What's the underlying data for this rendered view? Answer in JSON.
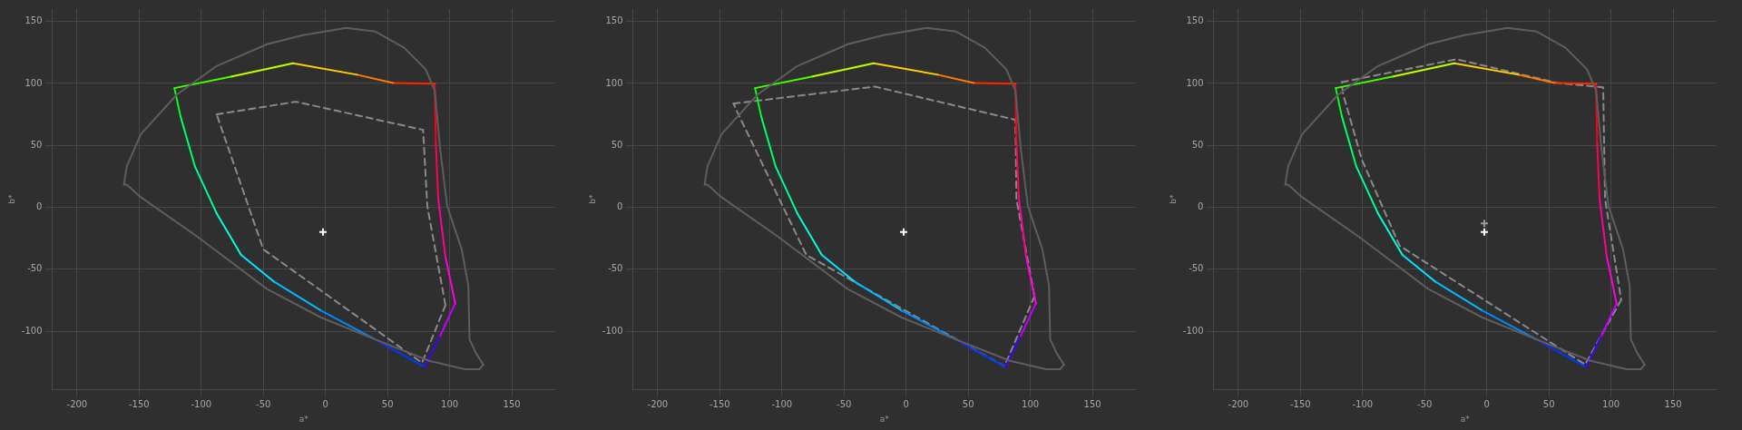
{
  "chart_data": [
    {
      "type": "line",
      "xlabel": "a*",
      "ylabel": "b*",
      "xlim": [
        -220,
        185
      ],
      "ylim": [
        -147,
        160
      ],
      "xticks": [
        -200,
        -150,
        -100,
        -50,
        0,
        50,
        100,
        150
      ],
      "yticks": [
        -100,
        -50,
        0,
        50,
        100,
        150
      ],
      "grid": true,
      "marker": "none",
      "series": [
        {
          "color": "#5e5e5e",
          "line_style": "solid",
          "x": [
            -162.2,
            -160,
            -148.6,
            -119.6,
            -87.6,
            -47,
            -18,
            16.8,
            40,
            63.3,
            80.7,
            88,
            92.3,
            98,
            109.7,
            115,
            116,
            121.3,
            127
          ],
          "values": [
            18.3,
            32.8,
            59,
            91,
            114,
            131.6,
            139,
            144.8,
            141.9,
            128.8,
            111.3,
            94,
            47.4,
            0.9,
            -34,
            -63,
            -106.7,
            -118,
            -127
          ]
        },
        {
          "color": "#5e5e5e",
          "line_style": "solid",
          "x": [
            127,
            124,
            112.6,
            83.6,
            40,
            -3.5,
            -47,
            -105,
            -148.6,
            -160,
            -162.2
          ],
          "values": [
            -127,
            -130.8,
            -130.8,
            -124,
            -106.7,
            -89,
            -66,
            -22.4,
            8.1,
            18.3,
            18.3
          ]
        },
        {
          "line_style": "solid",
          "color": "#40ff00",
          "x": [
            -121.6,
            -76
          ],
          "values": [
            96.2,
            105.5
          ]
        },
        {
          "line_style": "solid",
          "color": "#c0ff00",
          "x": [
            -76,
            -26.1
          ],
          "values": [
            105.5,
            116.3
          ]
        },
        {
          "line_style": "solid",
          "color": "#ffd000",
          "x": [
            -26.1,
            25.5
          ],
          "values": [
            116.3,
            107
          ]
        },
        {
          "line_style": "solid",
          "color": "#ff7a00",
          "x": [
            25.5,
            54.6
          ],
          "values": [
            107,
            100.3
          ]
        },
        {
          "line_style": "solid",
          "color": "#ff2800",
          "x": [
            54.6,
            88
          ],
          "values": [
            100.3,
            99.7
          ]
        },
        {
          "line_style": "solid",
          "color": "#ff0018",
          "x": [
            88,
            88.8
          ],
          "values": [
            99.7,
            53
          ]
        },
        {
          "line_style": "solid",
          "color": "#ff0058",
          "x": [
            88.8,
            90.8
          ],
          "values": [
            53,
            6.7
          ]
        },
        {
          "line_style": "solid",
          "color": "#ff00a0",
          "x": [
            90.8,
            96.6
          ],
          "values": [
            6.7,
            -39.8
          ]
        },
        {
          "line_style": "solid",
          "color": "#ff00e0",
          "x": [
            96.6,
            104.5
          ],
          "values": [
            -39.8,
            -77.6
          ]
        },
        {
          "line_style": "solid",
          "color": "#c000ff",
          "x": [
            104.5,
            92.3
          ],
          "values": [
            -77.6,
            -103.8
          ]
        },
        {
          "line_style": "solid",
          "color": "#4000ff",
          "x": [
            92.3,
            79.8
          ],
          "values": [
            -103.8,
            -129
          ]
        },
        {
          "line_style": "solid",
          "color": "#0038ff",
          "x": [
            79.8,
            40
          ],
          "values": [
            -129,
            -106.7
          ]
        },
        {
          "line_style": "solid",
          "color": "#0088ff",
          "x": [
            40,
            -3.5
          ],
          "values": [
            -106.7,
            -83.4
          ]
        },
        {
          "line_style": "solid",
          "color": "#00b8ff",
          "x": [
            -3.5,
            -41.2
          ],
          "values": [
            -83.4,
            -60.2
          ]
        },
        {
          "line_style": "solid",
          "color": "#00e8ff",
          "x": [
            -41.2,
            -67.9
          ],
          "values": [
            -60.2,
            -38.4
          ]
        },
        {
          "line_style": "solid",
          "color": "#00ffd5",
          "x": [
            -67.9,
            -87.6
          ],
          "values": [
            -38.4,
            -4.9
          ]
        },
        {
          "line_style": "solid",
          "color": "#00ff95",
          "x": [
            -87.6,
            -105
          ],
          "values": [
            -4.9,
            32.8
          ]
        },
        {
          "line_style": "solid",
          "color": "#00ff60",
          "x": [
            -105,
            -116.7
          ],
          "values": [
            32.8,
            73.5
          ]
        },
        {
          "line_style": "solid",
          "color": "#00ff20",
          "x": [
            -116.7,
            -121.6
          ],
          "values": [
            73.5,
            96.2
          ]
        },
        {
          "line_style": "dashed",
          "color": "#8a8a8a",
          "x": [
            -87.6,
            -23.8,
            78.6,
            82,
            96.6
          ],
          "values": [
            75,
            85.2,
            62.5,
            0.9,
            -79
          ]
        },
        {
          "line_style": "dashed",
          "color": "#8a8a8a",
          "x": [
            96.6,
            77.8,
            -50,
            -87.6
          ],
          "values": [
            -79,
            -125.6,
            -34,
            75
          ]
        },
        {
          "type": "scatter",
          "marker": "cross",
          "color": "#ffffff",
          "x": [
            -2
          ],
          "values": [
            -20
          ]
        }
      ]
    },
    {
      "type": "line",
      "xlabel": "a*",
      "ylabel": "b*",
      "xlim": [
        -220,
        185
      ],
      "ylim": [
        -147,
        160
      ],
      "xticks": [
        -200,
        -150,
        -100,
        -50,
        0,
        50,
        100,
        150
      ],
      "yticks": [
        -100,
        -50,
        0,
        50,
        100,
        150
      ],
      "grid": true,
      "marker": "none",
      "series": [
        {
          "color": "#5e5e5e",
          "line_style": "solid",
          "x": [
            -162.2,
            -160,
            -148.6,
            -119.6,
            -87.6,
            -47,
            -18,
            16.8,
            40,
            63.3,
            80.7,
            88,
            92.3,
            98,
            109.7,
            115,
            116,
            121.3,
            127
          ],
          "values": [
            18.3,
            32.8,
            59,
            91,
            114,
            131.6,
            139,
            144.8,
            141.9,
            128.8,
            111.3,
            94,
            47.4,
            0.9,
            -34,
            -63,
            -106.7,
            -118,
            -127
          ]
        },
        {
          "color": "#5e5e5e",
          "line_style": "solid",
          "x": [
            127,
            124,
            112.6,
            83.6,
            40,
            -3.5,
            -47,
            -105,
            -148.6,
            -160,
            -162.2
          ],
          "values": [
            -127,
            -130.8,
            -130.8,
            -124,
            -106.7,
            -89,
            -66,
            -22.4,
            8.1,
            18.3,
            18.3
          ]
        },
        {
          "line_style": "solid",
          "color": "#40ff00",
          "x": [
            -121.6,
            -76
          ],
          "values": [
            96.2,
            105.5
          ]
        },
        {
          "line_style": "solid",
          "color": "#c0ff00",
          "x": [
            -76,
            -26.1
          ],
          "values": [
            105.5,
            116.3
          ]
        },
        {
          "line_style": "solid",
          "color": "#ffd000",
          "x": [
            -26.1,
            25.5
          ],
          "values": [
            116.3,
            107
          ]
        },
        {
          "line_style": "solid",
          "color": "#ff7a00",
          "x": [
            25.5,
            54.6
          ],
          "values": [
            107,
            100.3
          ]
        },
        {
          "line_style": "solid",
          "color": "#ff2800",
          "x": [
            54.6,
            88
          ],
          "values": [
            100.3,
            99.7
          ]
        },
        {
          "line_style": "solid",
          "color": "#ff0018",
          "x": [
            88,
            88.8
          ],
          "values": [
            99.7,
            53
          ]
        },
        {
          "line_style": "solid",
          "color": "#ff0058",
          "x": [
            88.8,
            90.8
          ],
          "values": [
            53,
            6.7
          ]
        },
        {
          "line_style": "solid",
          "color": "#ff00a0",
          "x": [
            90.8,
            96.6
          ],
          "values": [
            6.7,
            -39.8
          ]
        },
        {
          "line_style": "solid",
          "color": "#ff00e0",
          "x": [
            96.6,
            104.5
          ],
          "values": [
            -39.8,
            -77.6
          ]
        },
        {
          "line_style": "solid",
          "color": "#c000ff",
          "x": [
            104.5,
            92.3
          ],
          "values": [
            -77.6,
            -103.8
          ]
        },
        {
          "line_style": "solid",
          "color": "#4000ff",
          "x": [
            92.3,
            79.8
          ],
          "values": [
            -103.8,
            -129
          ]
        },
        {
          "line_style": "solid",
          "color": "#0038ff",
          "x": [
            79.8,
            40
          ],
          "values": [
            -129,
            -106.7
          ]
        },
        {
          "line_style": "solid",
          "color": "#0088ff",
          "x": [
            40,
            -3.5
          ],
          "values": [
            -106.7,
            -83.4
          ]
        },
        {
          "line_style": "solid",
          "color": "#00b8ff",
          "x": [
            -3.5,
            -41.2
          ],
          "values": [
            -83.4,
            -60.2
          ]
        },
        {
          "line_style": "solid",
          "color": "#00e8ff",
          "x": [
            -41.2,
            -67.9
          ],
          "values": [
            -60.2,
            -38.4
          ]
        },
        {
          "line_style": "solid",
          "color": "#00ffd5",
          "x": [
            -67.9,
            -87.6
          ],
          "values": [
            -38.4,
            -4.9
          ]
        },
        {
          "line_style": "solid",
          "color": "#00ff95",
          "x": [
            -87.6,
            -105
          ],
          "values": [
            -4.9,
            32.8
          ]
        },
        {
          "line_style": "solid",
          "color": "#00ff60",
          "x": [
            -105,
            -116.7
          ],
          "values": [
            32.8,
            73.5
          ]
        },
        {
          "line_style": "solid",
          "color": "#00ff20",
          "x": [
            -116.7,
            -121.6
          ],
          "values": [
            73.5,
            96.2
          ]
        },
        {
          "line_style": "dashed",
          "color": "#8a8a8a",
          "x": [
            -139,
            -25.2,
            88,
            88.8,
            103.3
          ],
          "values": [
            83.7,
            97.4,
            70.6,
            6.7,
            -71.8
          ]
        },
        {
          "line_style": "dashed",
          "color": "#8a8a8a",
          "x": [
            103.3,
            79.2,
            -80.4,
            -135.5,
            -139
          ],
          "values": [
            -71.8,
            -128.5,
            -38.4,
            76,
            83.7
          ]
        },
        {
          "type": "scatter",
          "marker": "cross",
          "color": "#ffffff",
          "x": [
            -2
          ],
          "values": [
            -20
          ]
        }
      ]
    },
    {
      "type": "line",
      "xlabel": "a*",
      "ylabel": "b*",
      "xlim": [
        -220,
        185
      ],
      "ylim": [
        -147,
        160
      ],
      "xticks": [
        -200,
        -150,
        -100,
        -50,
        0,
        50,
        100,
        150
      ],
      "yticks": [
        -100,
        -50,
        0,
        50,
        100,
        150
      ],
      "grid": true,
      "marker": "none",
      "series": [
        {
          "color": "#5e5e5e",
          "line_style": "solid",
          "x": [
            -162.2,
            -160,
            -148.6,
            -119.6,
            -87.6,
            -47,
            -18,
            16.8,
            40,
            63.3,
            80.7,
            88,
            92.3,
            98,
            109.7,
            115,
            116,
            121.3,
            127
          ],
          "values": [
            18.3,
            32.8,
            59,
            91,
            114,
            131.6,
            139,
            144.8,
            141.9,
            128.8,
            111.3,
            94,
            47.4,
            0.9,
            -34,
            -63,
            -106.7,
            -118,
            -127
          ]
        },
        {
          "color": "#5e5e5e",
          "line_style": "solid",
          "x": [
            127,
            124,
            112.6,
            83.6,
            40,
            -3.5,
            -47,
            -105,
            -148.6,
            -160,
            -162.2
          ],
          "values": [
            -127,
            -130.8,
            -130.8,
            -124,
            -106.7,
            -89,
            -66,
            -22.4,
            8.1,
            18.3,
            18.3
          ]
        },
        {
          "line_style": "solid",
          "color": "#40ff00",
          "x": [
            -121.6,
            -76
          ],
          "values": [
            96.2,
            105.5
          ]
        },
        {
          "line_style": "solid",
          "color": "#c0ff00",
          "x": [
            -76,
            -26.1
          ],
          "values": [
            105.5,
            116.3
          ]
        },
        {
          "line_style": "solid",
          "color": "#ffd000",
          "x": [
            -26.1,
            25.5
          ],
          "values": [
            116.3,
            107
          ]
        },
        {
          "line_style": "solid",
          "color": "#ff7a00",
          "x": [
            25.5,
            54.6
          ],
          "values": [
            107,
            100.3
          ]
        },
        {
          "line_style": "solid",
          "color": "#ff2800",
          "x": [
            54.6,
            88
          ],
          "values": [
            100.3,
            99.7
          ]
        },
        {
          "line_style": "solid",
          "color": "#ff0018",
          "x": [
            88,
            88.8
          ],
          "values": [
            99.7,
            53
          ]
        },
        {
          "line_style": "solid",
          "color": "#ff0058",
          "x": [
            88.8,
            90.8
          ],
          "values": [
            53,
            6.7
          ]
        },
        {
          "line_style": "solid",
          "color": "#ff00a0",
          "x": [
            90.8,
            96.6
          ],
          "values": [
            6.7,
            -39.8
          ]
        },
        {
          "line_style": "solid",
          "color": "#ff00e0",
          "x": [
            96.6,
            104.5
          ],
          "values": [
            -39.8,
            -77.6
          ]
        },
        {
          "line_style": "solid",
          "color": "#c000ff",
          "x": [
            104.5,
            92.3
          ],
          "values": [
            -77.6,
            -103.8
          ]
        },
        {
          "line_style": "solid",
          "color": "#4000ff",
          "x": [
            92.3,
            79.8
          ],
          "values": [
            -103.8,
            -129
          ]
        },
        {
          "line_style": "solid",
          "color": "#0038ff",
          "x": [
            79.8,
            40
          ],
          "values": [
            -129,
            -106.7
          ]
        },
        {
          "line_style": "solid",
          "color": "#0088ff",
          "x": [
            40,
            -3.5
          ],
          "values": [
            -106.7,
            -83.4
          ]
        },
        {
          "line_style": "solid",
          "color": "#00b8ff",
          "x": [
            -3.5,
            -41.2
          ],
          "values": [
            -83.4,
            -60.2
          ]
        },
        {
          "line_style": "solid",
          "color": "#00e8ff",
          "x": [
            -41.2,
            -67.9
          ],
          "values": [
            -60.2,
            -38.4
          ]
        },
        {
          "line_style": "solid",
          "color": "#00ffd5",
          "x": [
            -67.9,
            -87.6
          ],
          "values": [
            -38.4,
            -4.9
          ]
        },
        {
          "line_style": "solid",
          "color": "#00ff95",
          "x": [
            -87.6,
            -105
          ],
          "values": [
            -4.9,
            32.8
          ]
        },
        {
          "line_style": "solid",
          "color": "#00ff60",
          "x": [
            -105,
            -116.7
          ],
          "values": [
            32.8,
            73.5
          ]
        },
        {
          "line_style": "solid",
          "color": "#00ff20",
          "x": [
            -116.7,
            -121.6
          ],
          "values": [
            73.5,
            96.2
          ]
        },
        {
          "line_style": "dashed",
          "color": "#8a8a8a",
          "x": [
            -116.7,
            -24.4,
            57.5,
            93.7,
            95.2,
            108.2
          ],
          "values": [
            101,
            119.5,
            100.3,
            96.8,
            6.7,
            -74.7
          ]
        },
        {
          "line_style": "dashed",
          "color": "#8a8a8a",
          "x": [
            108.2,
            79.2,
            -70.2,
            -100.7,
            -116,
            -116.7
          ],
          "values": [
            -74.7,
            -127,
            -31,
            38.7,
            92.7,
            101
          ]
        },
        {
          "type": "scatter",
          "marker": "cross",
          "color": "#9a9a9a",
          "x": [
            -2
          ],
          "values": [
            -13
          ]
        },
        {
          "type": "scatter",
          "marker": "cross",
          "color": "#ffffff",
          "x": [
            -2
          ],
          "values": [
            -20
          ]
        }
      ]
    }
  ]
}
